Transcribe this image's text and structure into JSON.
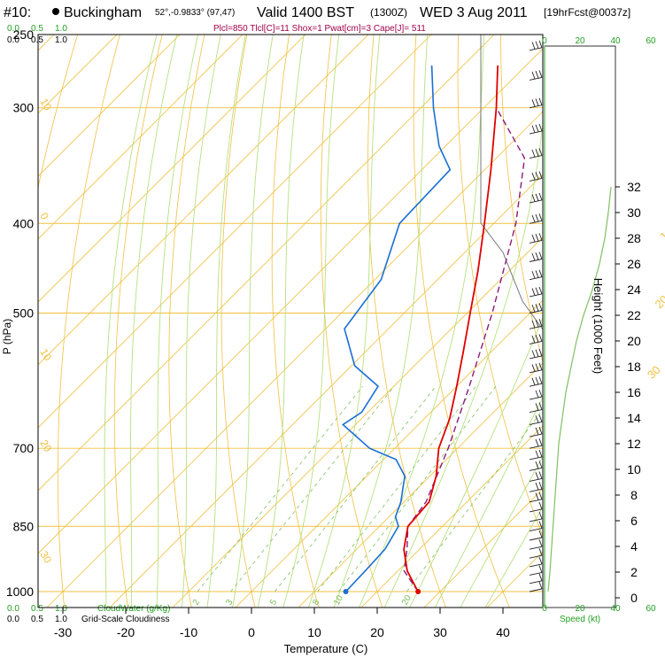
{
  "header": {
    "station_id": "#10:",
    "station_name": "Buckingham",
    "coords": "52°,-0.9833° (97,47)",
    "valid": "Valid 1400 BST",
    "utc": "(1300Z)",
    "date": "WED 3 Aug 2011",
    "forecast": "[19hrFcst@0037z]",
    "indices": "Plcl=850 Tlcl[C]=11 Shox=1 Pwat[cm]=3 Cape[J]= 511"
  },
  "colors": {
    "isotherm": "#f0c040",
    "isobar": "#f0c040",
    "dry_adiabat": "#f0c040",
    "moist_adiabat": "#b8e080",
    "mixing_ratio": "#80c060",
    "temperature": "#e00000",
    "dewpoint": "#1a6fd4",
    "parcel": "#8a1a7a",
    "green_text": "#22a022",
    "indices_text": "#a0004a"
  },
  "chart_data": {
    "type": "skew-t",
    "xlabel": "Temperature (C)",
    "ylabel": "P (hPa)",
    "y2label": "Height (1000 Feet)",
    "pressure_levels": [
      250,
      300,
      400,
      500,
      700,
      850,
      1000
    ],
    "temperature_ticks": [
      -30,
      -20,
      -10,
      0,
      10,
      20,
      30,
      40
    ],
    "height_ticks": [
      0,
      2,
      4,
      6,
      8,
      10,
      12,
      14,
      16,
      18,
      20,
      22,
      24,
      26,
      28,
      30,
      32
    ],
    "isotherm_labels": [
      {
        "value": "0",
        "p": 350
      },
      {
        "value": "10",
        "p": 418
      },
      {
        "value": "20",
        "p": 495
      },
      {
        "value": "30",
        "p": 590
      }
    ],
    "dry_adiabat_labels": [
      {
        "value": "10",
        "p": 295
      },
      {
        "value": "0",
        "p": 392
      },
      {
        "value": "10",
        "p": 550
      },
      {
        "value": "20",
        "p": 690
      },
      {
        "value": "30",
        "p": 910
      }
    ],
    "mixing_ratio_labels": [
      "2",
      "3",
      "5",
      "8",
      "10",
      "20"
    ],
    "temperature": [
      {
        "p": 1000,
        "t": 26.5
      },
      {
        "p": 950,
        "t": 21.5
      },
      {
        "p": 900,
        "t": 17.5
      },
      {
        "p": 850,
        "t": 14.5
      },
      {
        "p": 800,
        "t": 14.0
      },
      {
        "p": 750,
        "t": 11.0
      },
      {
        "p": 700,
        "t": 7.0
      },
      {
        "p": 650,
        "t": 4.0
      },
      {
        "p": 600,
        "t": 0.0
      },
      {
        "p": 550,
        "t": -4.5
      },
      {
        "p": 500,
        "t": -9.5
      },
      {
        "p": 450,
        "t": -15.0
      },
      {
        "p": 400,
        "t": -21.5
      },
      {
        "p": 350,
        "t": -29.0
      },
      {
        "p": 300,
        "t": -38.0
      },
      {
        "p": 270,
        "t": -44.5
      }
    ],
    "dewpoint": [
      {
        "p": 1000,
        "t": 15.0
      },
      {
        "p": 950,
        "t": 14.8
      },
      {
        "p": 900,
        "t": 14.5
      },
      {
        "p": 850,
        "t": 13.0
      },
      {
        "p": 830,
        "t": 11.0
      },
      {
        "p": 800,
        "t": 9.5
      },
      {
        "p": 750,
        "t": 6.0
      },
      {
        "p": 720,
        "t": 2.0
      },
      {
        "p": 700,
        "t": -4.0
      },
      {
        "p": 660,
        "t": -12.0
      },
      {
        "p": 640,
        "t": -11.0
      },
      {
        "p": 600,
        "t": -12.5
      },
      {
        "p": 570,
        "t": -19.5
      },
      {
        "p": 520,
        "t": -27.0
      },
      {
        "p": 460,
        "t": -29.0
      },
      {
        "p": 400,
        "t": -35.0
      },
      {
        "p": 350,
        "t": -35.5
      },
      {
        "p": 330,
        "t": -41.0
      },
      {
        "p": 300,
        "t": -48.0
      },
      {
        "p": 270,
        "t": -55.0
      }
    ],
    "parcel": [
      {
        "p": 1000,
        "t": 26.5
      },
      {
        "p": 950,
        "t": 21.0
      },
      {
        "p": 900,
        "t": 18.0
      },
      {
        "p": 850,
        "t": 14.5
      },
      {
        "p": 800,
        "t": 13.5
      },
      {
        "p": 700,
        "t": 8.5
      },
      {
        "p": 600,
        "t": 2.0
      },
      {
        "p": 500,
        "t": -6.0
      },
      {
        "p": 400,
        "t": -16.5
      },
      {
        "p": 340,
        "t": -25.5
      },
      {
        "p": 300,
        "t": -38.0
      }
    ],
    "wind_levels_hpa": [
      1000,
      980,
      960,
      940,
      920,
      900,
      880,
      860,
      840,
      820,
      800,
      780,
      760,
      740,
      720,
      700,
      680,
      660,
      640,
      620,
      600,
      580,
      560,
      540,
      520,
      500,
      480,
      460,
      440,
      420,
      400,
      380,
      360,
      340,
      320,
      300,
      280,
      260
    ],
    "wind_speed_profile_kt": [
      {
        "h": 0.5,
        "s": 2
      },
      {
        "h": 2,
        "s": 3
      },
      {
        "h": 4,
        "s": 4
      },
      {
        "h": 6,
        "s": 5
      },
      {
        "h": 8,
        "s": 6
      },
      {
        "h": 10,
        "s": 7
      },
      {
        "h": 12,
        "s": 8
      },
      {
        "h": 14,
        "s": 10
      },
      {
        "h": 16,
        "s": 12
      },
      {
        "h": 18,
        "s": 15
      },
      {
        "h": 20,
        "s": 18
      },
      {
        "h": 22,
        "s": 22
      },
      {
        "h": 24,
        "s": 27
      },
      {
        "h": 26,
        "s": 31
      },
      {
        "h": 28,
        "s": 34
      },
      {
        "h": 30,
        "s": 36
      },
      {
        "h": 32,
        "s": 37.5
      }
    ],
    "cloud_panel": {
      "top_scale_water": [
        "0.0",
        "0.5",
        "1.0"
      ],
      "top_scale_cloud": [
        "0.0",
        "0.5",
        "1.0"
      ],
      "bottom_scale_water": [
        "0.0",
        "0.5",
        "1.0"
      ],
      "bottom_scale_cloud": [
        "0.0",
        "0.5",
        "1.0"
      ],
      "water_label": "CloudWater (g/Kg)",
      "cloud_label": "Grid-Scale Cloudiness"
    },
    "speed_panel": {
      "ticks": [
        "0",
        "20",
        "40",
        "60"
      ],
      "label": "Speed (kt)"
    }
  }
}
